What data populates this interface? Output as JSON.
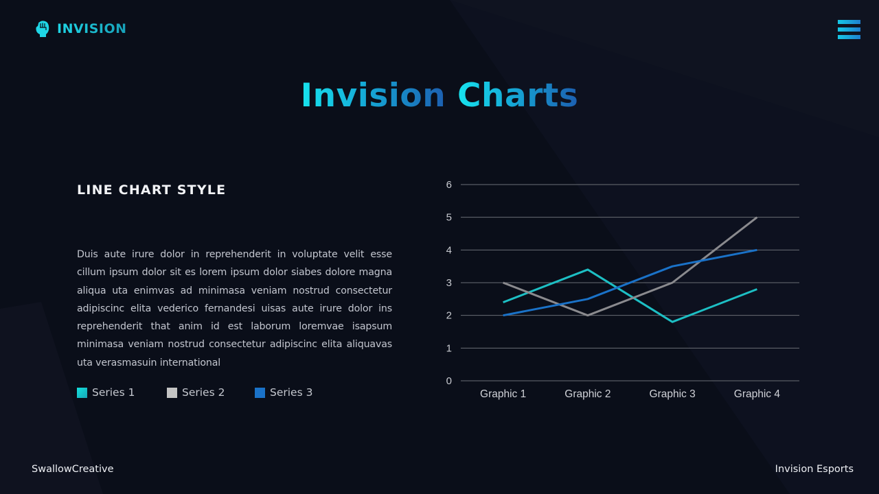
{
  "brand": {
    "logo_text": "INVISION",
    "logo_icon": "fist-icon",
    "accent_start": "#1fd6e6",
    "accent_end": "#1c5fb0"
  },
  "header": {
    "menu_icon": "hamburger-menu-icon"
  },
  "page": {
    "title_part1": "Invision",
    "title_part2": "Charts",
    "subtitle": "LINE CHART STYLE",
    "body": "Duis aute irure dolor in reprehenderit in voluptate velit esse cillum ipsum dolor sit es lorem ipsum dolor siabes dolore magna aliqua uta enimvas ad minimasa veniam nostrud consectetur adipiscinc elita vederico fernandesi uisas aute irure dolor ins reprehenderit that anim id est laborum loremvae isapsum minimasa veniam nostrud consectetur adipiscinc elita aliquavas uta verasmasuin international"
  },
  "legend": [
    {
      "label": "Series 1",
      "color": "#1dbfc4"
    },
    {
      "label": "Series 2",
      "color": "#c4c4c4"
    },
    {
      "label": "Series 3",
      "color": "#1a72c8"
    }
  ],
  "footer": {
    "left": "SwallowCreative",
    "right": "Invision Esports"
  },
  "chart_data": {
    "type": "line",
    "title": "",
    "xlabel": "",
    "ylabel": "",
    "categories": [
      "Graphic 1",
      "Graphic 2",
      "Graphic 3",
      "Graphic 4"
    ],
    "series": [
      {
        "name": "Series 1",
        "values": [
          2.4,
          3.4,
          1.8,
          2.8
        ],
        "color": "#1dbfc4"
      },
      {
        "name": "Series 2",
        "values": [
          3,
          2,
          3,
          5
        ],
        "color": "#8a8a8e"
      },
      {
        "name": "Series 3",
        "values": [
          2,
          2.5,
          3.5,
          4
        ],
        "color": "#1a72c8"
      }
    ],
    "ylim": [
      0,
      6
    ],
    "yticks": [
      0,
      1,
      2,
      3,
      4,
      5,
      6
    ],
    "grid": true,
    "legend_position": "bottom-left (external)"
  }
}
